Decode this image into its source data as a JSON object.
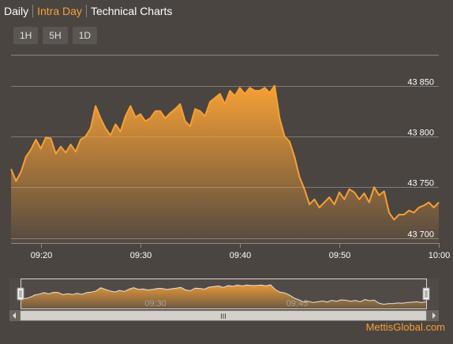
{
  "tabs": [
    {
      "label": "Daily",
      "state": "normal"
    },
    {
      "label": "Intra Day",
      "state": "active"
    },
    {
      "label": "Technical Charts",
      "state": "normal"
    }
  ],
  "range_buttons": [
    "1H",
    "5H",
    "1D"
  ],
  "brand": "MettisGlobal.com",
  "colors": {
    "background": "#4a4541",
    "line": "#f7a035",
    "accent_text": "#f7a035",
    "grid": "#8f8a84",
    "navigator_bg": "#5b5651"
  },
  "navigator": {
    "tick_labels": [
      "09:30",
      "09:45"
    ],
    "scrollbar_grip": "III"
  },
  "chart_data": {
    "type": "area",
    "xlabel": "",
    "ylabel": "",
    "ylim": [
      43695,
      43880
    ],
    "xlim": [
      "09:17",
      "10:00"
    ],
    "x_ticks": [
      "09:20",
      "09:30",
      "09:40",
      "09:50",
      "10:00"
    ],
    "y_ticks": [
      43700,
      43750,
      43800,
      43850
    ],
    "y_tick_labels": [
      "43 700",
      "43 750",
      "43 800",
      "43 850"
    ],
    "grid": true,
    "series": [
      {
        "x": [
          "09:17",
          "09:17:30",
          "09:18",
          "09:18:30",
          "09:19",
          "09:19:30",
          "09:20",
          "09:20:30",
          "09:21",
          "09:21:30",
          "09:22",
          "09:22:30",
          "09:23",
          "09:23:30",
          "09:24",
          "09:24:30",
          "09:25",
          "09:25:30",
          "09:26",
          "09:26:30",
          "09:27",
          "09:27:30",
          "09:28",
          "09:28:30",
          "09:29",
          "09:29:30",
          "09:30",
          "09:30:30",
          "09:31",
          "09:31:30",
          "09:32",
          "09:32:30",
          "09:33",
          "09:33:30",
          "09:34",
          "09:34:30",
          "09:35",
          "09:35:30",
          "09:36",
          "09:36:30",
          "09:37",
          "09:37:30",
          "09:38",
          "09:38:30",
          "09:39",
          "09:39:30",
          "09:40",
          "09:40:30",
          "09:41",
          "09:41:30",
          "09:42",
          "09:42:30",
          "09:43",
          "09:43:30",
          "09:44",
          "09:44:30",
          "09:45",
          "09:45:30",
          "09:46",
          "09:46:30",
          "09:47",
          "09:47:30",
          "09:48",
          "09:48:30",
          "09:49",
          "09:49:30",
          "09:50",
          "09:50:30",
          "09:51",
          "09:51:30",
          "09:52",
          "09:52:30",
          "09:53",
          "09:53:30",
          "09:54",
          "09:54:30",
          "09:55",
          "09:55:30",
          "09:56",
          "09:56:30",
          "09:57",
          "09:57:30",
          "09:58",
          "09:58:30",
          "09:59",
          "09:59:30",
          "10:00"
        ],
        "values": [
          43768,
          43756,
          43765,
          43780,
          43787,
          43797,
          43788,
          43799,
          43798,
          43783,
          43790,
          43784,
          43792,
          43785,
          43797,
          43800,
          43808,
          43830,
          43818,
          43808,
          43801,
          43812,
          43805,
          43820,
          43830,
          43819,
          43822,
          43815,
          43818,
          43825,
          43825,
          43818,
          43823,
          43827,
          43832,
          43815,
          43810,
          43827,
          43825,
          43820,
          43834,
          43838,
          43842,
          43832,
          43845,
          43840,
          43848,
          43842,
          43848,
          43845,
          43845,
          43848,
          43843,
          43850,
          43818,
          43800,
          43795,
          43780,
          43760,
          43748,
          43733,
          43738,
          43730,
          43735,
          43740,
          43733,
          43745,
          43738,
          43748,
          43745,
          43738,
          43744,
          43735,
          43750,
          43742,
          43746,
          43725,
          43718,
          43723,
          43723,
          43727,
          43725,
          43730,
          43732,
          43735,
          43730,
          43735
        ]
      }
    ]
  }
}
